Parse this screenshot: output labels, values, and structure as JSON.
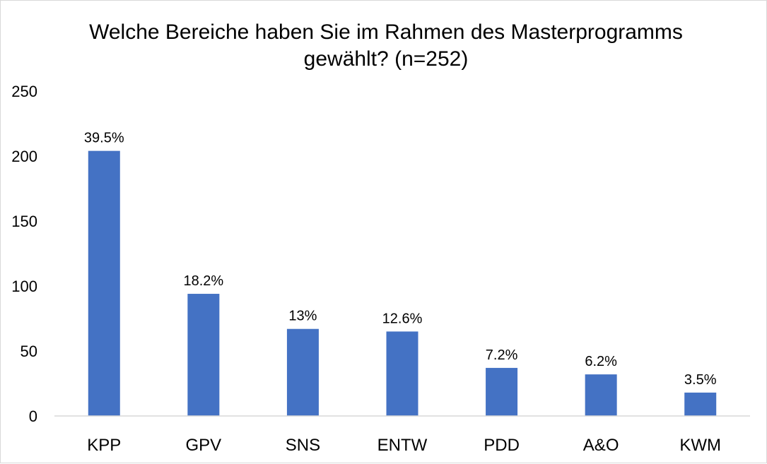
{
  "chart_data": {
    "type": "bar",
    "title_lines": [
      "Welche Bereiche haben Sie im Rahmen des Masterprogramms",
      "gewählt? (n=252)"
    ],
    "categories": [
      "KPP",
      "GPV",
      "SNS",
      "ENTW",
      "PDD",
      "A&O",
      "KWM"
    ],
    "values": [
      204,
      94,
      67,
      65,
      37,
      32,
      18
    ],
    "data_labels": [
      "39.5%",
      "18.2%",
      "13%",
      "12.6%",
      "7.2%",
      "6.2%",
      "3.5%"
    ],
    "ylim": [
      0,
      250
    ],
    "yticks": [
      "0",
      "50",
      "100",
      "150",
      "200",
      "250"
    ],
    "grid": false,
    "legend": "none",
    "bar_color": "#4472c4",
    "axis_color": "#d9d9d9"
  }
}
